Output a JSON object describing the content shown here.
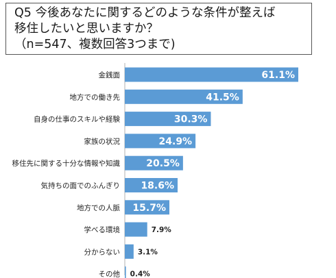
{
  "title": {
    "line1": "Q5 今後あなたに関するどのような条件が整えば",
    "line2": "移住したいと思いますか？",
    "line3": "（n=547、複数回答3つまで)"
  },
  "chart_data": {
    "type": "bar",
    "orientation": "horizontal",
    "categories": [
      "金銭面",
      "地方での働き先",
      "自身の仕事のスキルや経験",
      "家族の状況",
      "移住先に関する十分な情報や知識",
      "気持ちの面でのふんぎり",
      "地方での人脈",
      "学べる環境",
      "分からない",
      "その他"
    ],
    "values": [
      61.1,
      41.5,
      30.3,
      24.9,
      20.5,
      18.6,
      15.7,
      7.9,
      3.1,
      0.4
    ],
    "value_labels": [
      "61.1%",
      "41.5%",
      "30.3%",
      "24.9%",
      "20.5%",
      "18.6%",
      "15.7%",
      "7.9%",
      "3.1%",
      "0.4%"
    ],
    "xlim": [
      0,
      65
    ],
    "grid": false,
    "bar_color": "#5b9bd5"
  }
}
